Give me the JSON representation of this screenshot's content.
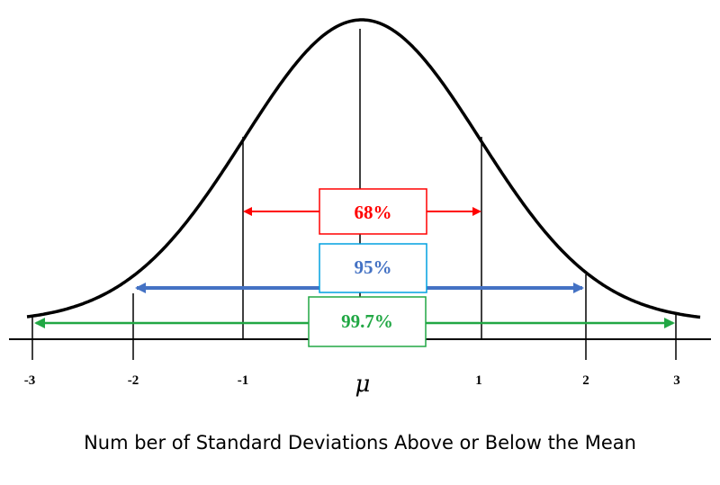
{
  "diagram": {
    "tick_labels": [
      "-3",
      "-2",
      "-1",
      "μ",
      "1",
      "2",
      "3"
    ],
    "ranges": [
      {
        "label": "68%",
        "sigma": 1,
        "color": "#ff0000",
        "box_border": "#ff0000"
      },
      {
        "label": "95%",
        "sigma": 2,
        "color": "#4472c4",
        "box_border": "#00a0e0"
      },
      {
        "label": "99.7%",
        "sigma": 3,
        "color": "#21a744",
        "box_border": "#21a744"
      }
    ],
    "axis_title": "Num ber of Standard Deviations Above or Below the Mean"
  }
}
